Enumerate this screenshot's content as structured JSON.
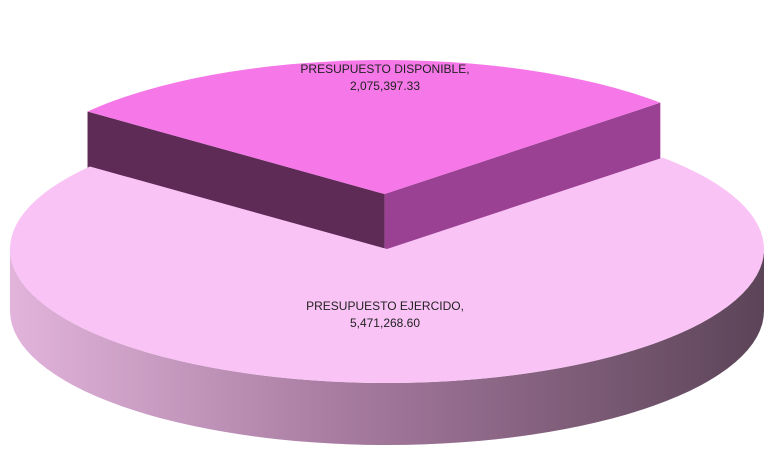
{
  "chart_data": {
    "type": "pie",
    "categories": [
      "PRESUPUESTO DISPONIBLE,",
      "PRESUPUESTO EJERCIDO,"
    ],
    "values": [
      2075397.33,
      5471268.6
    ],
    "value_labels": [
      "2,075,397.33",
      "5,471,268.60"
    ],
    "colors": [
      "#f577e8",
      "#f9c3f5"
    ]
  }
}
